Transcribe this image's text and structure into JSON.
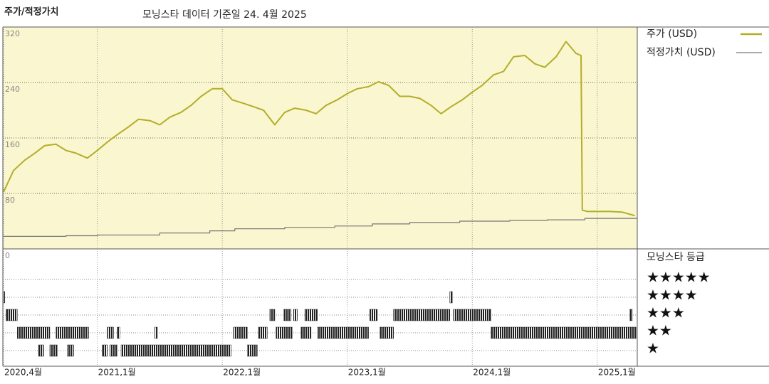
{
  "chart_data": {
    "type": "line",
    "title": "주가/적정가치",
    "subtitle": "모닝스타 데이터 기준일 24. 4월 2025",
    "xlim": [
      2020.25,
      2025.32
    ],
    "xticks": [
      {
        "value": 2020.25,
        "label": "2020,4월"
      },
      {
        "value": 2021,
        "label": "2021,1월"
      },
      {
        "value": 2022,
        "label": "2022,1월"
      },
      {
        "value": 2023,
        "label": "2023,1월"
      },
      {
        "value": 2024,
        "label": "2024,1월"
      },
      {
        "value": 2025,
        "label": "2025,1월"
      }
    ],
    "ylim": [
      0,
      320
    ],
    "yticks": [
      0,
      80,
      160,
      240,
      320
    ],
    "grid": true,
    "series": [
      {
        "name": "주가 (USD)",
        "color": "#b3ae2a",
        "x": [
          2020.25,
          2020.33,
          2020.42,
          2020.5,
          2020.58,
          2020.67,
          2020.75,
          2020.83,
          2020.92,
          2021.0,
          2021.08,
          2021.17,
          2021.25,
          2021.33,
          2021.42,
          2021.5,
          2021.58,
          2021.67,
          2021.75,
          2021.83,
          2021.92,
          2022.0,
          2022.08,
          2022.17,
          2022.25,
          2022.33,
          2022.42,
          2022.5,
          2022.58,
          2022.67,
          2022.75,
          2022.83,
          2022.92,
          2023.0,
          2023.08,
          2023.17,
          2023.25,
          2023.33,
          2023.42,
          2023.5,
          2023.58,
          2023.67,
          2023.75,
          2023.83,
          2023.92,
          2024.0,
          2024.08,
          2024.17,
          2024.25,
          2024.33,
          2024.42,
          2024.5,
          2024.58,
          2024.67,
          2024.75,
          2024.83,
          2024.87,
          2024.88,
          2024.92,
          2025.0,
          2025.1,
          2025.2,
          2025.3
        ],
        "values": [
          82,
          113,
          128,
          138,
          149,
          151,
          142,
          138,
          131,
          142,
          154,
          166,
          176,
          187,
          185,
          179,
          190,
          197,
          207,
          220,
          231,
          231,
          215,
          210,
          205,
          200,
          179,
          197,
          203,
          200,
          195,
          207,
          215,
          224,
          231,
          234,
          241,
          236,
          220,
          220,
          217,
          207,
          195,
          205,
          215,
          226,
          236,
          251,
          256,
          277,
          279,
          267,
          262,
          277,
          299,
          282,
          279,
          56,
          54,
          54,
          54,
          53,
          48
        ]
      },
      {
        "name": "적정가치 (USD)",
        "color": "#777777",
        "x": [
          2020.25,
          2020.75,
          2020.75,
          2021.0,
          2021.0,
          2021.5,
          2021.5,
          2021.9,
          2021.9,
          2022.1,
          2022.1,
          2022.5,
          2022.5,
          2022.9,
          2022.9,
          2023.2,
          2023.2,
          2023.5,
          2023.5,
          2023.9,
          2023.9,
          2024.3,
          2024.3,
          2024.6,
          2024.6,
          2024.9,
          2024.9,
          2025.32
        ],
        "values": [
          18,
          18,
          19,
          19,
          20,
          20,
          23,
          23,
          26,
          26,
          29,
          29,
          31,
          31,
          33,
          33,
          36,
          36,
          38,
          38,
          40,
          40,
          41,
          41,
          42,
          42,
          44,
          44
        ]
      }
    ],
    "rating_title": "모닝스타 등급",
    "rating_levels": [
      {
        "value": 5,
        "label": "★★★★★"
      },
      {
        "value": 4,
        "label": "★★★★"
      },
      {
        "value": 3,
        "label": "★★★"
      },
      {
        "value": 2,
        "label": "★★"
      },
      {
        "value": 1,
        "label": "★"
      }
    ],
    "rating_periods": [
      {
        "start": 2020.25,
        "end": 2020.26,
        "stars": 4
      },
      {
        "start": 2023.82,
        "end": 2023.84,
        "stars": 4
      },
      {
        "start": 2020.27,
        "end": 2020.36,
        "stars": 3
      },
      {
        "start": 2022.38,
        "end": 2022.42,
        "stars": 3
      },
      {
        "start": 2022.49,
        "end": 2022.55,
        "stars": 3
      },
      {
        "start": 2022.57,
        "end": 2022.6,
        "stars": 3
      },
      {
        "start": 2022.66,
        "end": 2022.76,
        "stars": 3
      },
      {
        "start": 2023.18,
        "end": 2023.24,
        "stars": 3
      },
      {
        "start": 2023.37,
        "end": 2023.82,
        "stars": 3
      },
      {
        "start": 2023.85,
        "end": 2024.15,
        "stars": 3
      },
      {
        "start": 2025.26,
        "end": 2025.28,
        "stars": 3
      },
      {
        "start": 2020.36,
        "end": 2020.62,
        "stars": 2
      },
      {
        "start": 2020.67,
        "end": 2020.93,
        "stars": 2
      },
      {
        "start": 2021.08,
        "end": 2021.13,
        "stars": 2
      },
      {
        "start": 2021.16,
        "end": 2021.18,
        "stars": 2
      },
      {
        "start": 2021.46,
        "end": 2021.48,
        "stars": 2
      },
      {
        "start": 2022.09,
        "end": 2022.2,
        "stars": 2
      },
      {
        "start": 2022.29,
        "end": 2022.36,
        "stars": 2
      },
      {
        "start": 2022.43,
        "end": 2022.56,
        "stars": 2
      },
      {
        "start": 2022.63,
        "end": 2022.71,
        "stars": 2
      },
      {
        "start": 2022.76,
        "end": 2023.17,
        "stars": 2
      },
      {
        "start": 2023.26,
        "end": 2023.37,
        "stars": 2
      },
      {
        "start": 2024.15,
        "end": 2025.31,
        "stars": 2
      },
      {
        "start": 2020.53,
        "end": 2020.57,
        "stars": 1
      },
      {
        "start": 2020.62,
        "end": 2020.68,
        "stars": 1
      },
      {
        "start": 2020.76,
        "end": 2020.81,
        "stars": 1
      },
      {
        "start": 2021.04,
        "end": 2021.08,
        "stars": 1
      },
      {
        "start": 2021.1,
        "end": 2021.16,
        "stars": 1
      },
      {
        "start": 2021.19,
        "end": 2022.07,
        "stars": 1
      },
      {
        "start": 2022.2,
        "end": 2022.28,
        "stars": 1
      }
    ]
  }
}
